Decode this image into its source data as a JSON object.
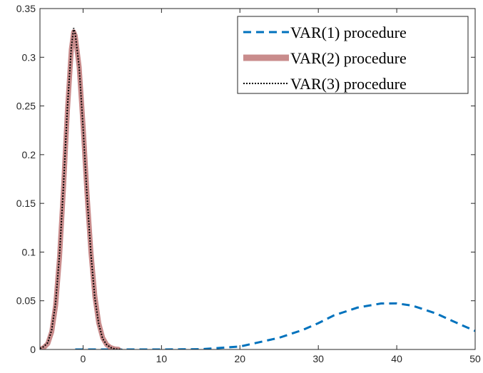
{
  "chart_data": {
    "type": "line",
    "title": "",
    "xlabel": "",
    "ylabel": "",
    "xlim": [
      -5.5,
      50
    ],
    "ylim": [
      0,
      0.35
    ],
    "xticks": [
      0,
      10,
      20,
      30,
      40,
      50
    ],
    "yticks": [
      0,
      0.05,
      0.1,
      0.15,
      0.2,
      0.25,
      0.3,
      0.35
    ],
    "xtick_labels": [
      "0",
      "10",
      "20",
      "30",
      "40",
      "50"
    ],
    "ytick_labels": [
      "0",
      "0.05",
      "0.1",
      "0.15",
      "0.2",
      "0.25",
      "0.3",
      "0.35"
    ],
    "grid": false,
    "box": true,
    "legend_position": "top-right",
    "series": [
      {
        "name": "VAR(1) procedure",
        "style": "dashed",
        "color": "#0072BD",
        "x": [
          -1,
          5,
          10,
          15,
          20,
          25,
          28,
          30,
          32,
          35,
          38,
          40,
          42,
          45,
          48,
          50
        ],
        "y": [
          0,
          0,
          0,
          0.0003,
          0.003,
          0.012,
          0.02,
          0.027,
          0.035,
          0.043,
          0.0472,
          0.0473,
          0.045,
          0.037,
          0.026,
          0.019
        ]
      },
      {
        "name": "VAR(2) procedure",
        "style": "solid-thick",
        "color": "#C98C8C",
        "x": [
          -5.5,
          -5,
          -4.5,
          -4,
          -3.5,
          -3,
          -2.5,
          -2,
          -1.5,
          -1.2,
          -1,
          -0.5,
          0,
          0.5,
          1,
          1.5,
          2,
          2.5,
          3,
          3.5,
          4,
          4.5
        ],
        "y": [
          0.0,
          0.002,
          0.006,
          0.018,
          0.045,
          0.095,
          0.165,
          0.245,
          0.308,
          0.326,
          0.322,
          0.29,
          0.23,
          0.16,
          0.1,
          0.055,
          0.027,
          0.012,
          0.005,
          0.002,
          0.0006,
          0.0002
        ]
      },
      {
        "name": "VAR(3) procedure",
        "style": "dotted",
        "color": "#000000",
        "x": [
          -5.5,
          -5,
          -4.5,
          -4,
          -3.5,
          -3,
          -2.5,
          -2,
          -1.5,
          -1.2,
          -1,
          -0.5,
          0,
          0.5,
          1,
          1.5,
          2,
          2.5,
          3,
          3.5,
          4,
          4.5,
          5
        ],
        "y": [
          0.001,
          0.003,
          0.007,
          0.02,
          0.048,
          0.098,
          0.168,
          0.248,
          0.31,
          0.33,
          0.324,
          0.29,
          0.228,
          0.158,
          0.098,
          0.053,
          0.026,
          0.011,
          0.005,
          0.002,
          0.0007,
          0.0002,
          0.0001
        ]
      }
    ]
  }
}
